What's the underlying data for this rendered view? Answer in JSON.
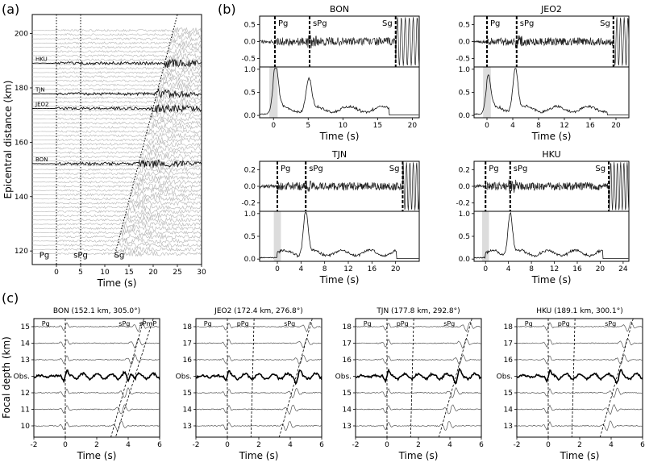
{
  "panel_labels": [
    "(a)",
    "(b)",
    "(c)"
  ],
  "chart_data": [
    {
      "id": "a",
      "type": "line",
      "xlabel": "Time (s)",
      "ylabel": "Epicentral distance (km)",
      "xlim": [
        -5,
        30
      ],
      "ylim": [
        115,
        207
      ],
      "xticks": [
        0,
        5,
        10,
        15,
        20,
        25,
        30
      ],
      "yticks": [
        120,
        140,
        160,
        180,
        200
      ],
      "phase_labels": [
        "Pg",
        "sPg",
        "Sg"
      ],
      "highlighted_stations": [
        {
          "name": "HKU",
          "distance": 189.1
        },
        {
          "name": "TJN",
          "distance": 177.8
        },
        {
          "name": "JEO2",
          "distance": 172.4
        },
        {
          "name": "BON",
          "distance": 152.1
        }
      ],
      "pg_line_time": 0,
      "spg_line_time": 5,
      "sg_line": [
        [
          12,
          118
        ],
        [
          25,
          207
        ]
      ]
    },
    {
      "id": "b",
      "type": "line",
      "xlabel": "Time (s)",
      "subplots": [
        {
          "station": "BON",
          "xlim": [
            -2,
            21
          ],
          "xticks": [
            0,
            5,
            10,
            15,
            20
          ],
          "top_yticks": [
            "0.5",
            "0.0",
            "-0.5"
          ],
          "bottom_yticks": [
            "1.0",
            "0.5",
            "0.0"
          ],
          "picks": {
            "Pg": 0.2,
            "sPg": 5.2,
            "Sg": 17.6
          },
          "envelope_peaks": [
            [
              0.3,
              0.95
            ],
            [
              5.1,
              0.65
            ]
          ]
        },
        {
          "station": "JEO2",
          "xlim": [
            -2,
            22
          ],
          "xticks": [
            0,
            4,
            8,
            12,
            16,
            20
          ],
          "top_yticks": [
            "0.5",
            "0.0",
            "-0.5"
          ],
          "bottom_yticks": [
            "1.0",
            "0.5",
            "0.0"
          ],
          "picks": {
            "Pg": 0,
            "sPg": 4.6,
            "Sg": 19.6
          },
          "envelope_peaks": [
            [
              0.2,
              0.72
            ],
            [
              4.4,
              0.92
            ]
          ]
        },
        {
          "station": "TJN",
          "xlim": [
            -3,
            24
          ],
          "xticks": [
            0,
            4,
            8,
            12,
            16,
            20
          ],
          "top_yticks": [
            "0.2",
            "0.0",
            "-0.2"
          ],
          "bottom_yticks": [
            "1.0",
            "0.5",
            "0.0"
          ],
          "picks": {
            "Pg": 0,
            "sPg": 4.8,
            "Sg": 21.2
          },
          "envelope_peaks": [
            [
              4.8,
              0.95
            ]
          ]
        },
        {
          "station": "HKU",
          "xlim": [
            -2,
            25
          ],
          "xticks": [
            0,
            4,
            8,
            12,
            16,
            20,
            24
          ],
          "top_yticks": [
            "0.2",
            "0.0",
            "-0.2"
          ],
          "bottom_yticks": [
            "1.0",
            "0.5",
            "0.0"
          ],
          "picks": {
            "Pg": 0,
            "sPg": 4.3,
            "Sg": 21.5
          },
          "envelope_peaks": [
            [
              4.3,
              0.92
            ]
          ]
        }
      ]
    },
    {
      "id": "c",
      "type": "line",
      "xlabel": "Time (s)",
      "ylabel": "Focal depth (km)",
      "xlim": [
        -2,
        6
      ],
      "xticks": [
        -2,
        0,
        2,
        4,
        6
      ],
      "subplots": [
        {
          "title": "BON (152.1 km, 305.0°)",
          "ylabels": [
            "15",
            "14",
            "13",
            "Obs.",
            "12",
            "11",
            "10"
          ],
          "phases": [
            "Pg",
            "sPg",
            "sPmP"
          ]
        },
        {
          "title": "JEO2 (172.4 km, 276.8°)",
          "ylabels": [
            "18",
            "17",
            "16",
            "Obs.",
            "15",
            "14",
            "13"
          ],
          "phases": [
            "Pg",
            "pPg",
            "sPg"
          ]
        },
        {
          "title": "TJN (177.8 km, 292.8°)",
          "ylabels": [
            "18",
            "17",
            "16",
            "Obs.",
            "15",
            "14",
            "13"
          ],
          "phases": [
            "Pg",
            "pPg",
            "sPg"
          ]
        },
        {
          "title": "HKU (189.1 km, 300.1°)",
          "ylabels": [
            "18",
            "17",
            "16",
            "Obs.",
            "15",
            "14",
            "13"
          ],
          "phases": [
            "Pg",
            "pPg",
            "sPg"
          ]
        }
      ]
    }
  ]
}
